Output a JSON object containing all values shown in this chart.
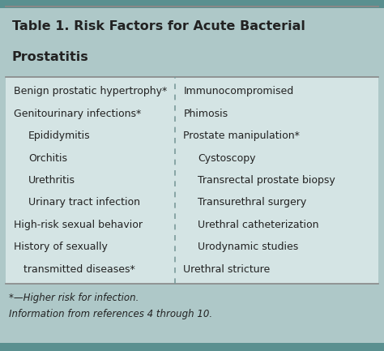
{
  "title_line1": "Table 1. Risk Factors for Acute Bacterial",
  "title_line2": "Prostatitis",
  "bg_color": "#aec8c8",
  "header_bg": "#aec8c8",
  "table_bg": "#d4e4e4",
  "left_column": [
    {
      "text": "Benign prostatic hypertrophy*",
      "indent": 0
    },
    {
      "text": "Genitourinary infections*",
      "indent": 0
    },
    {
      "text": "Epididymitis",
      "indent": 1
    },
    {
      "text": "Orchitis",
      "indent": 1
    },
    {
      "text": "Urethritis",
      "indent": 1
    },
    {
      "text": "Urinary tract infection",
      "indent": 1
    },
    {
      "text": "High-risk sexual behavior",
      "indent": 0
    },
    {
      "text": "History of sexually",
      "indent": 0
    },
    {
      "text": "   transmitted diseases*",
      "indent": 0
    }
  ],
  "right_column": [
    {
      "text": "Immunocompromised",
      "indent": 0
    },
    {
      "text": "Phimosis",
      "indent": 0
    },
    {
      "text": "Prostate manipulation*",
      "indent": 0
    },
    {
      "text": "Cystoscopy",
      "indent": 1
    },
    {
      "text": "Transrectal prostate biopsy",
      "indent": 1
    },
    {
      "text": "Transurethral surgery",
      "indent": 1
    },
    {
      "text": "Urethral catheterization",
      "indent": 1
    },
    {
      "text": "Urodynamic studies",
      "indent": 1
    },
    {
      "text": "Urethral stricture",
      "indent": 0
    }
  ],
  "footnote1": "*—Higher risk for infection.",
  "footnote2": "Information from references 4 through 10.",
  "text_color": "#222222",
  "divider_color": "#7a9a9a",
  "line_color": "#888888",
  "title_fontsize": 11.5,
  "body_fontsize": 9.0,
  "footnote_fontsize": 8.5
}
